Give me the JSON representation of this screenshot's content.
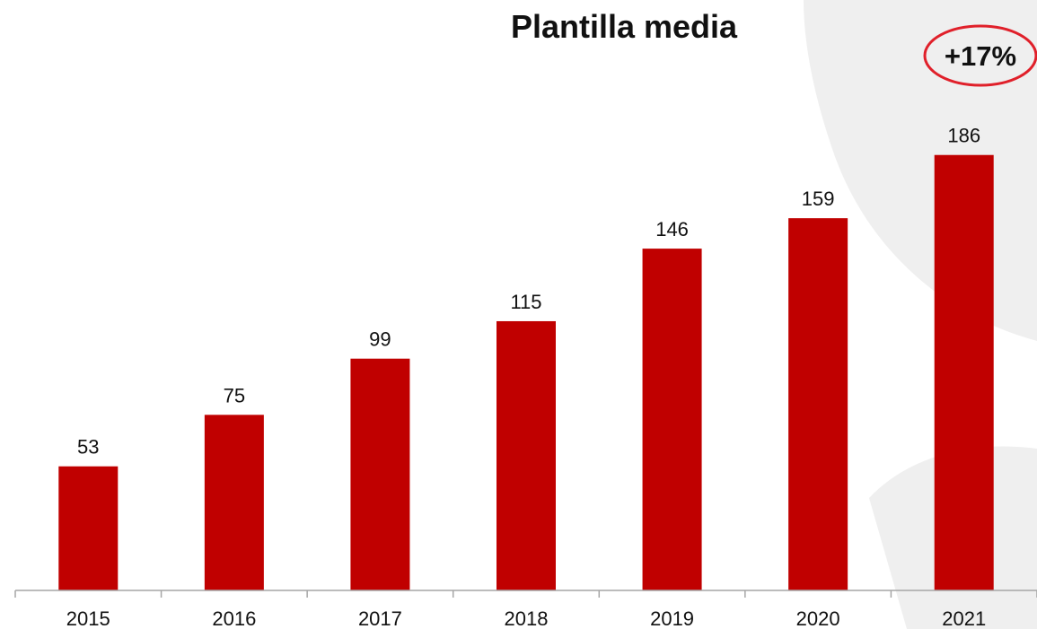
{
  "colors": {
    "bar": "#c00000",
    "badge_outline": "#e0202a",
    "decor": "#efefef",
    "axis": "#a6a6a6",
    "text": "#111111"
  },
  "badge": {
    "label": "+17%"
  },
  "chart_data": {
    "type": "bar",
    "title": "Plantilla media",
    "xlabel": "",
    "ylabel": "",
    "categories": [
      "2015",
      "2016",
      "2017",
      "2018",
      "2019",
      "2020",
      "2021"
    ],
    "values": [
      53,
      75,
      99,
      115,
      146,
      159,
      186
    ],
    "value_labels": [
      "53",
      "75",
      "99",
      "115",
      "146",
      "159",
      "186"
    ],
    "ylim": [
      0,
      190
    ],
    "grid": false,
    "legend": "none"
  }
}
